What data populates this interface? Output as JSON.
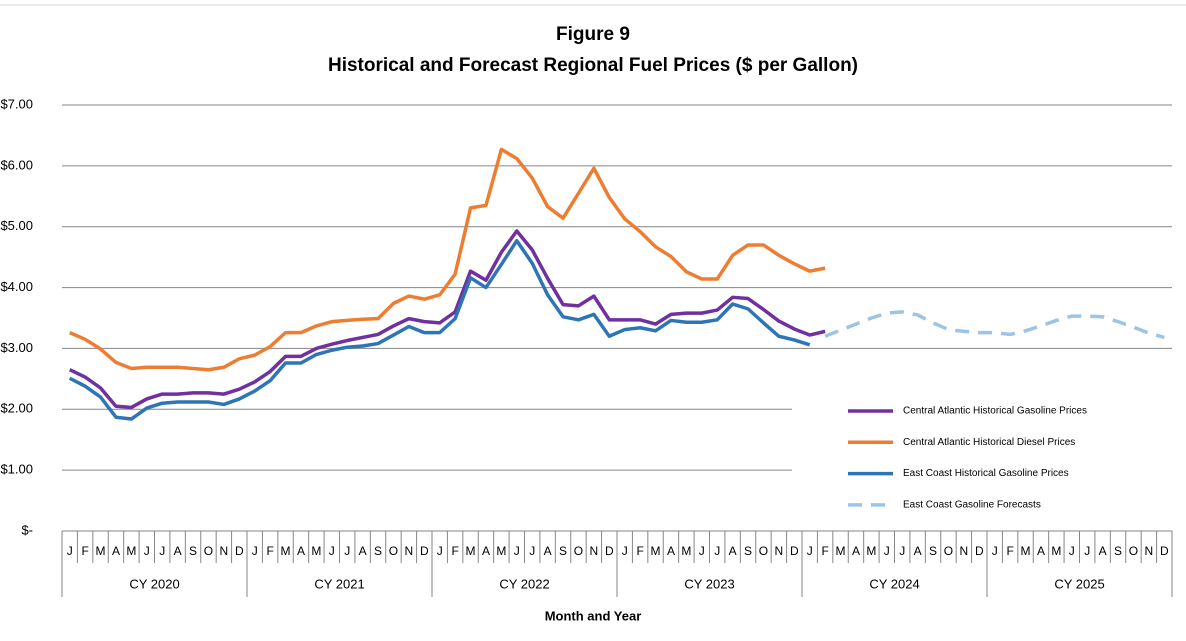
{
  "chart_data": {
    "type": "line",
    "title": "Figure 9",
    "subtitle": "Historical and Forecast Regional Fuel Prices ($ per Gallon)",
    "x_label": "Month and Year",
    "categories": [
      "J",
      "F",
      "M",
      "A",
      "M",
      "J",
      "J",
      "A",
      "S",
      "O",
      "N",
      "D",
      "J",
      "F",
      "M",
      "A",
      "M",
      "J",
      "J",
      "A",
      "S",
      "O",
      "N",
      "D",
      "J",
      "F",
      "M",
      "A",
      "M",
      "J",
      "J",
      "A",
      "S",
      "O",
      "N",
      "D",
      "J",
      "F",
      "M",
      "A",
      "M",
      "J",
      "J",
      "A",
      "S",
      "O",
      "N",
      "D",
      "J",
      "F",
      "M",
      "A",
      "M",
      "J",
      "J",
      "A",
      "S",
      "O",
      "N",
      "D",
      "J",
      "F",
      "M",
      "A",
      "M",
      "J",
      "J",
      "A",
      "S",
      "O",
      "N",
      "D"
    ],
    "groups": [
      "CY 2020",
      "CY 2021",
      "CY 2022",
      "CY 2023",
      "CY 2024",
      "CY 2025"
    ],
    "ylim": [
      0,
      7
    ],
    "yticks": [
      {
        "value": 0,
        "label": "$-"
      },
      {
        "value": 1,
        "label": "$1.00"
      },
      {
        "value": 2,
        "label": "$2.00"
      },
      {
        "value": 3,
        "label": "$3.00"
      },
      {
        "value": 4,
        "label": "$4.00"
      },
      {
        "value": 5,
        "label": "$5.00"
      },
      {
        "value": 6,
        "label": "$6.00"
      },
      {
        "value": 7,
        "label": "$7.00"
      }
    ],
    "grid": true,
    "legend": "right",
    "series": [
      {
        "name": "Central Atlantic Historical Gasoline Prices",
        "color": "#7030a0",
        "line_style": "solid",
        "values": [
          2.65,
          2.53,
          2.35,
          2.05,
          2.03,
          2.17,
          2.25,
          2.25,
          2.27,
          2.27,
          2.25,
          2.33,
          2.45,
          2.62,
          2.87,
          2.87,
          3.0,
          3.07,
          3.13,
          3.18,
          3.23,
          3.37,
          3.49,
          3.44,
          3.42,
          3.6,
          4.27,
          4.12,
          4.58,
          4.93,
          4.62,
          4.15,
          3.72,
          3.7,
          3.86,
          3.47,
          3.47,
          3.47,
          3.4,
          3.56,
          3.58,
          3.58,
          3.63,
          3.84,
          3.82,
          3.64,
          3.45,
          3.32,
          3.22,
          3.28,
          null,
          null,
          null,
          null,
          null,
          null,
          null,
          null,
          null,
          null,
          null,
          null,
          null,
          null,
          null,
          null,
          null,
          null,
          null,
          null,
          null,
          null
        ]
      },
      {
        "name": "Central Atlantic Historical Diesel Prices",
        "color": "#ed7d31",
        "line_style": "solid",
        "values": [
          3.26,
          3.15,
          2.99,
          2.77,
          2.67,
          2.69,
          2.69,
          2.69,
          2.67,
          2.65,
          2.69,
          2.83,
          2.89,
          3.03,
          3.26,
          3.26,
          3.37,
          3.44,
          3.46,
          3.48,
          3.49,
          3.74,
          3.86,
          3.81,
          3.88,
          4.22,
          5.31,
          5.35,
          6.27,
          6.12,
          5.8,
          5.33,
          5.14,
          5.55,
          5.96,
          5.48,
          5.13,
          4.92,
          4.67,
          4.51,
          4.26,
          4.14,
          4.14,
          4.53,
          4.7,
          4.7,
          4.53,
          4.39,
          4.27,
          4.32,
          null,
          null,
          null,
          null,
          null,
          null,
          null,
          null,
          null,
          null,
          null,
          null,
          null,
          null,
          null,
          null,
          null,
          null,
          null,
          null,
          null,
          null
        ]
      },
      {
        "name": "East Coast Historical Gasoline Prices",
        "color": "#2e75b6",
        "line_style": "solid",
        "values": [
          2.51,
          2.38,
          2.2,
          1.87,
          1.84,
          2.02,
          2.1,
          2.12,
          2.12,
          2.12,
          2.08,
          2.17,
          2.3,
          2.47,
          2.76,
          2.76,
          2.9,
          2.97,
          3.02,
          3.04,
          3.08,
          3.22,
          3.36,
          3.26,
          3.26,
          3.49,
          4.16,
          4.0,
          4.38,
          4.77,
          4.4,
          3.88,
          3.52,
          3.47,
          3.56,
          3.2,
          3.31,
          3.34,
          3.29,
          3.46,
          3.43,
          3.43,
          3.47,
          3.73,
          3.65,
          3.42,
          3.2,
          3.14,
          3.06,
          null,
          null,
          null,
          null,
          null,
          null,
          null,
          null,
          null,
          null,
          null,
          null,
          null,
          null,
          null,
          null,
          null,
          null,
          null,
          null,
          null,
          null,
          null
        ]
      },
      {
        "name": "East Coast Gasoline Forecasts",
        "color": "#9dc3e6",
        "line_style": "dashed",
        "values": [
          null,
          null,
          null,
          null,
          null,
          null,
          null,
          null,
          null,
          null,
          null,
          null,
          null,
          null,
          null,
          null,
          null,
          null,
          null,
          null,
          null,
          null,
          null,
          null,
          null,
          null,
          null,
          null,
          null,
          null,
          null,
          null,
          null,
          null,
          null,
          null,
          null,
          null,
          null,
          null,
          null,
          null,
          null,
          null,
          null,
          null,
          null,
          null,
          null,
          3.2,
          3.3,
          3.4,
          3.5,
          3.58,
          3.6,
          3.55,
          3.42,
          3.31,
          3.28,
          3.26,
          3.26,
          3.23,
          3.29,
          3.37,
          3.46,
          3.53,
          3.53,
          3.52,
          3.44,
          3.35,
          3.25,
          3.18
        ]
      }
    ]
  }
}
